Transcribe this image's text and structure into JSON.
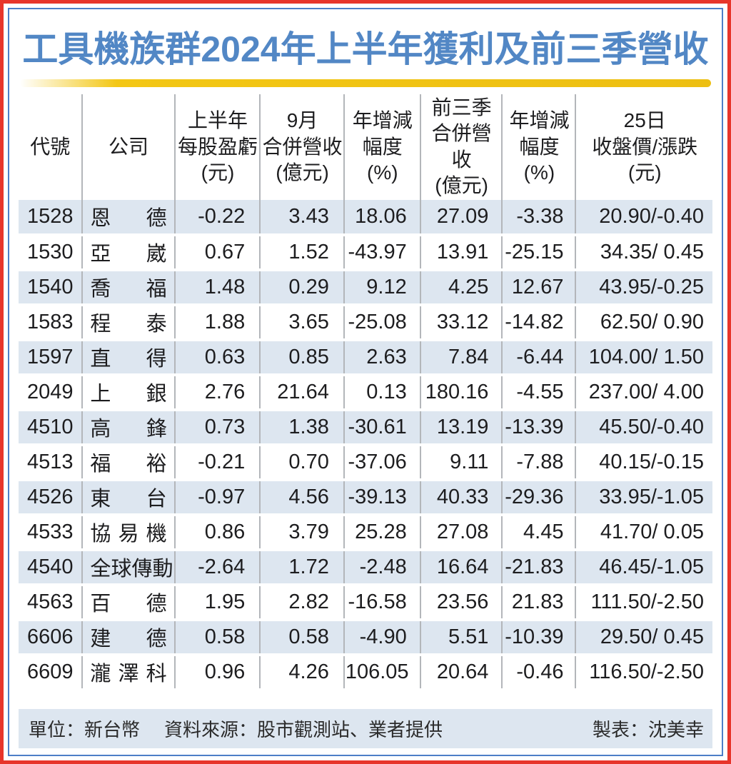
{
  "title": "工具機族群2024年上半年獲利及前三季營收",
  "colors": {
    "title_blue": "#5287c5",
    "outer_border_red": "#e7352b",
    "inner_border_blue": "#4d7ec7",
    "gold_bar": "#edbf12",
    "row_stripe": "#dde6f0",
    "column_rule_gray": "#b3b6ba"
  },
  "chart_data": {
    "type": "table",
    "title": "工具機族群2024年上半年獲利及前三季營收",
    "columns": [
      {
        "id": "code",
        "label": "代號",
        "header_lines": [
          "代號"
        ]
      },
      {
        "id": "company",
        "label": "公司",
        "header_lines": [
          "公司"
        ]
      },
      {
        "id": "h1_eps",
        "label": "上半年每股盈虧(元)",
        "header_lines": [
          "上半年",
          "每股盈虧",
          "(元)"
        ]
      },
      {
        "id": "sep_revenue",
        "label": "9月合併營收(億元)",
        "header_lines": [
          "9月",
          "合併營收",
          "(億元)"
        ]
      },
      {
        "id": "sep_yoy",
        "label": "年增減幅度(%)",
        "header_lines": [
          "年增減",
          "幅度",
          "(%)"
        ]
      },
      {
        "id": "q3_revenue",
        "label": "前三季合併營收(億元)",
        "header_lines": [
          "前三季",
          "合併營收",
          "(億元)"
        ]
      },
      {
        "id": "q3_yoy",
        "label": "年增減幅度(%)",
        "header_lines": [
          "年增減",
          "幅度",
          "(%)"
        ]
      },
      {
        "id": "close_change",
        "label": "25日收盤價/漲跌(元)",
        "header_lines": [
          "25日",
          "收盤價/漲跌",
          "(元)"
        ]
      }
    ],
    "rows": [
      [
        "1528",
        "恩德",
        "-0.22",
        "3.43",
        "18.06",
        "27.09",
        "-3.38",
        "20.90/-0.40"
      ],
      [
        "1530",
        "亞崴",
        "0.67",
        "1.52",
        "-43.97",
        "13.91",
        "-25.15",
        "34.35/ 0.45"
      ],
      [
        "1540",
        "喬福",
        "1.48",
        "0.29",
        "9.12",
        "4.25",
        "12.67",
        "43.95/-0.25"
      ],
      [
        "1583",
        "程泰",
        "1.88",
        "3.65",
        "-25.08",
        "33.12",
        "-14.82",
        "62.50/ 0.90"
      ],
      [
        "1597",
        "直得",
        "0.63",
        "0.85",
        "2.63",
        "7.84",
        "-6.44",
        "104.00/ 1.50"
      ],
      [
        "2049",
        "上銀",
        "2.76",
        "21.64",
        "0.13",
        "180.16",
        "-4.55",
        "237.00/ 4.00"
      ],
      [
        "4510",
        "高鋒",
        "0.73",
        "1.38",
        "-30.61",
        "13.19",
        "-13.39",
        "45.50/-0.40"
      ],
      [
        "4513",
        "福裕",
        "-0.21",
        "0.70",
        "-37.06",
        "9.11",
        "-7.88",
        "40.15/-0.15"
      ],
      [
        "4526",
        "東台",
        "-0.97",
        "4.56",
        "-39.13",
        "40.33",
        "-29.36",
        "33.95/-1.05"
      ],
      [
        "4533",
        "協易機",
        "0.86",
        "3.79",
        "25.28",
        "27.08",
        "4.45",
        "41.70/ 0.05"
      ],
      [
        "4540",
        "全球傳動",
        "-2.64",
        "1.72",
        "-2.48",
        "16.64",
        "-21.83",
        "46.45/-1.05"
      ],
      [
        "4563",
        "百德",
        "1.95",
        "2.82",
        "-16.58",
        "23.56",
        "21.83",
        "111.50/-2.50"
      ],
      [
        "6606",
        "建德",
        "0.58",
        "0.58",
        "-4.90",
        "5.51",
        "-10.39",
        "29.50/ 0.45"
      ],
      [
        "6609",
        "瀧澤科",
        "0.96",
        "4.26",
        "106.05",
        "20.64",
        "-0.46",
        "116.50/-2.50"
      ]
    ]
  },
  "footer": {
    "unit": "單位：新台幣",
    "source": "資料來源：股市觀測站、業者提供",
    "credit": "製表：沈美幸"
  }
}
